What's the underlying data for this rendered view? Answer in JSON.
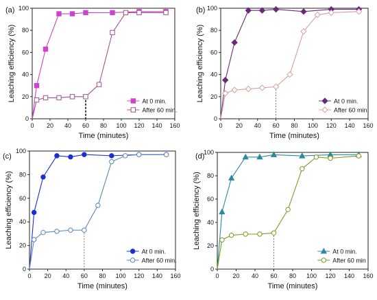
{
  "chart_data": [
    {
      "type": "line",
      "panel_label": "(a)",
      "xlabel": "Time (minutes)",
      "ylabel": "Leaching efficiency (%)",
      "xlim": [
        0,
        160
      ],
      "ylim": [
        0,
        100
      ],
      "xticks": [
        0,
        20,
        40,
        60,
        80,
        100,
        120,
        140,
        160
      ],
      "yticks": [
        0,
        20,
        40,
        60,
        80,
        100
      ],
      "legend_position": "bottom-right",
      "marker_line_x": 60,
      "series": [
        {
          "name": "At 0 min.",
          "color": "#cc44cc",
          "marker": "square",
          "filled": true,
          "x": [
            0,
            5,
            15,
            30,
            45,
            60,
            90,
            120,
            150
          ],
          "y": [
            0,
            30,
            63,
            95,
            95,
            96,
            96,
            97,
            97
          ]
        },
        {
          "name": "After 60 min.",
          "color": "#a0508a",
          "marker": "square",
          "filled": false,
          "x": [
            0,
            5,
            15,
            30,
            45,
            60,
            75,
            90,
            105,
            120,
            150
          ],
          "y": [
            0,
            17,
            19,
            19,
            20,
            20,
            31,
            78,
            96,
            96,
            96
          ]
        }
      ]
    },
    {
      "type": "line",
      "panel_label": "(b)",
      "xlabel": "Time (minutes)",
      "ylabel": "Leaching efficiency (%)",
      "xlim": [
        0,
        160
      ],
      "ylim": [
        0,
        100
      ],
      "xticks": [
        0,
        20,
        40,
        60,
        80,
        100,
        120,
        140,
        160
      ],
      "yticks": [
        0,
        20,
        40,
        60,
        80,
        100
      ],
      "legend_position": "bottom-right",
      "marker_line_x": 60,
      "series": [
        {
          "name": "At 0 min.",
          "color": "#6a2a7a",
          "marker": "diamond",
          "filled": true,
          "x": [
            0,
            5,
            15,
            30,
            45,
            60,
            90,
            120,
            150
          ],
          "y": [
            0,
            35,
            69,
            98,
            98,
            99,
            97,
            99,
            99
          ]
        },
        {
          "name": "After 60 min.",
          "color": "#d4a29a",
          "marker": "diamond",
          "filled": false,
          "x": [
            0,
            5,
            15,
            30,
            45,
            60,
            75,
            90,
            105,
            120,
            150
          ],
          "y": [
            0,
            23,
            26,
            27,
            28,
            29,
            40,
            79,
            94,
            96,
            97
          ]
        }
      ]
    },
    {
      "type": "line",
      "panel_label": "(c)",
      "xlabel": "Time (minutes)",
      "ylabel": "Leaching efficiency (%)",
      "xlim": [
        0,
        160
      ],
      "ylim": [
        0,
        100
      ],
      "xticks": [
        0,
        20,
        40,
        60,
        80,
        100,
        120,
        140,
        160
      ],
      "yticks": [
        0,
        20,
        40,
        60,
        80,
        100
      ],
      "legend_position": "bottom-right",
      "marker_line_x": 60,
      "series": [
        {
          "name": "At 0 min.",
          "color": "#1a2fd0",
          "marker": "circle",
          "filled": true,
          "x": [
            0,
            5,
            15,
            30,
            45,
            60,
            90,
            120,
            150
          ],
          "y": [
            0,
            48,
            78,
            96,
            95,
            97,
            96,
            97,
            97
          ]
        },
        {
          "name": "After 60 min.",
          "color": "#5a86b8",
          "marker": "circle",
          "filled": false,
          "x": [
            0,
            5,
            15,
            30,
            45,
            60,
            75,
            90,
            105,
            120,
            150
          ],
          "y": [
            0,
            25,
            31,
            32,
            33,
            33,
            54,
            91,
            96,
            97,
            97
          ]
        }
      ]
    },
    {
      "type": "line",
      "panel_label": "(d)",
      "xlabel": "Time (minutes)",
      "ylabel": "Leaching efficiency (%)",
      "xlim": [
        0,
        160
      ],
      "ylim": [
        0,
        100
      ],
      "xticks": [
        0,
        20,
        40,
        60,
        80,
        100,
        120,
        140,
        160
      ],
      "yticks": [
        0,
        20,
        40,
        60,
        80,
        100
      ],
      "legend_position": "bottom-right",
      "marker_line_x": 60,
      "series": [
        {
          "name": "At 0 min.",
          "color": "#2a8a99",
          "marker": "triangle",
          "filled": true,
          "x": [
            0,
            5,
            15,
            30,
            45,
            60,
            90,
            120,
            150
          ],
          "y": [
            0,
            49,
            78,
            96,
            96,
            98,
            97,
            98,
            98
          ]
        },
        {
          "name": "After 60 min",
          "color": "#7a9a22",
          "marker": "circle",
          "filled": false,
          "x": [
            0,
            5,
            15,
            30,
            45,
            60,
            75,
            90,
            105,
            120,
            150
          ],
          "y": [
            0,
            25,
            29,
            30,
            30,
            31,
            51,
            86,
            96,
            95,
            97
          ]
        }
      ]
    }
  ]
}
